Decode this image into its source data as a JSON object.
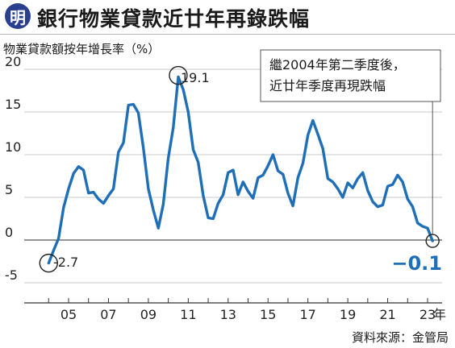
{
  "header": {
    "logo_text": "明",
    "title": "銀行物業貸款近廿年再錄跌幅"
  },
  "source": "資料來源：金管局",
  "chart_data": {
    "type": "line",
    "title": "銀行物業貸款近廿年再錄跌幅",
    "ylabel": "物業貸款額按年增長率（%）",
    "xlabel": "",
    "ylim": [
      -5,
      20
    ],
    "xlim": [
      2003.6,
      2023.7
    ],
    "yticks": [
      -5,
      0,
      5,
      10,
      15,
      20
    ],
    "xticks": [
      {
        "label": "05",
        "value": 2005
      },
      {
        "label": "07",
        "value": 2007
      },
      {
        "label": "09",
        "value": 2009
      },
      {
        "label": "11",
        "value": 2011
      },
      {
        "label": "13",
        "value": 2013
      },
      {
        "label": "15",
        "value": 2015
      },
      {
        "label": "17",
        "value": 2017
      },
      {
        "label": "19",
        "value": 2019
      },
      {
        "label": "21",
        "value": 2021
      },
      {
        "label": "23",
        "value": 2023
      }
    ],
    "x_unit_label": "年",
    "grid": "horizontal",
    "line_color": "#1f6fb8",
    "series": [
      {
        "x": [
          2004.0,
          2004.25,
          2004.5,
          2004.75,
          2005.0,
          2005.25,
          2005.5,
          2005.75,
          2006.0,
          2006.25,
          2006.5,
          2006.75,
          2007.0,
          2007.25,
          2007.5,
          2007.75,
          2008.0,
          2008.25,
          2008.5,
          2008.75,
          2009.0,
          2009.25,
          2009.5,
          2009.75,
          2010.0,
          2010.25,
          2010.5,
          2010.75,
          2011.0,
          2011.25,
          2011.5,
          2011.75,
          2012.0,
          2012.25,
          2012.5,
          2012.75,
          2013.0,
          2013.25,
          2013.5,
          2013.75,
          2014.0,
          2014.25,
          2014.5,
          2014.75,
          2015.0,
          2015.25,
          2015.5,
          2015.75,
          2016.0,
          2016.25,
          2016.5,
          2016.75,
          2017.0,
          2017.25,
          2017.5,
          2017.75,
          2018.0,
          2018.25,
          2018.5,
          2018.75,
          2019.0,
          2019.25,
          2019.5,
          2019.75,
          2020.0,
          2020.25,
          2020.5,
          2020.75,
          2021.0,
          2021.25,
          2021.5,
          2021.75,
          2022.0,
          2022.25,
          2022.5,
          2022.75,
          2023.0,
          2023.25
        ],
        "values": [
          -2.7,
          -1.2,
          0.2,
          3.8,
          6.0,
          7.8,
          8.6,
          8.2,
          5.5,
          5.6,
          4.8,
          4.3,
          5.2,
          6.0,
          10.3,
          11.4,
          15.8,
          15.9,
          14.9,
          10.8,
          6.0,
          3.5,
          1.4,
          4.2,
          9.6,
          13.2,
          19.1,
          17.6,
          15.0,
          10.6,
          9.1,
          5.2,
          2.6,
          2.5,
          4.3,
          5.3,
          7.9,
          8.2,
          5.3,
          6.8,
          5.7,
          4.9,
          7.3,
          7.6,
          8.7,
          10.0,
          8.1,
          7.7,
          5.5,
          4.0,
          7.3,
          9.0,
          12.3,
          14.0,
          12.4,
          10.7,
          7.2,
          6.8,
          6.0,
          5.0,
          6.7,
          6.1,
          7.2,
          7.9,
          5.8,
          4.5,
          3.9,
          4.1,
          6.3,
          6.5,
          7.6,
          6.8,
          4.8,
          3.9,
          2.0,
          1.6,
          1.4,
          -0.1
        ]
      }
    ],
    "annotations": [
      {
        "text": "-2.7",
        "x": 2004.0,
        "y": -2.7,
        "circle": true
      },
      {
        "text": "19.1",
        "x": 2010.5,
        "y": 19.1,
        "circle": true
      },
      {
        "text": "−0.1",
        "x": 2023.25,
        "y": -0.1,
        "circle": true,
        "emphasis": true
      }
    ],
    "callout": {
      "lines": [
        "繼2004年第二季度後，",
        "近廿年季度再現跌幅"
      ]
    }
  }
}
